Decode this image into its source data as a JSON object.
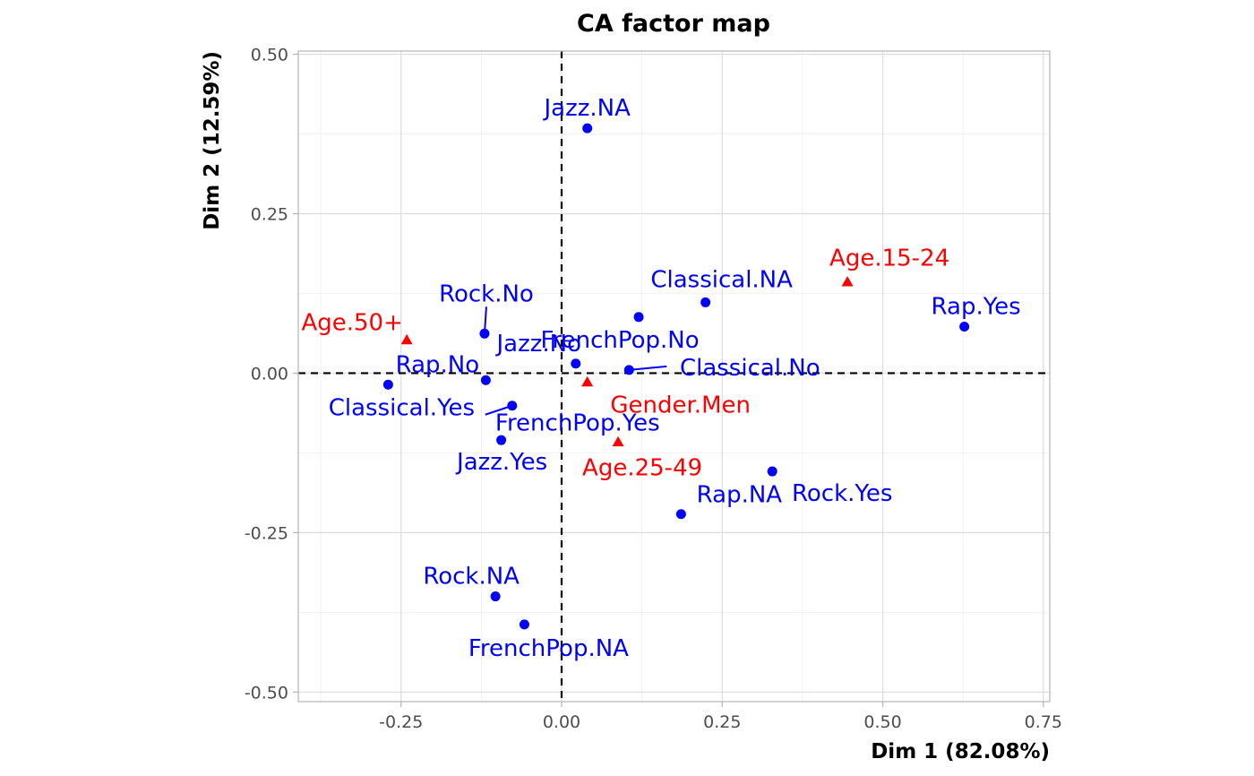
{
  "chart_data": {
    "type": "scatter",
    "title": "CA factor map",
    "xlabel": "Dim 1 (82.08%)",
    "ylabel": "Dim 2 (12.59%)",
    "xlim": [
      -0.41,
      0.76
    ],
    "ylim": [
      -0.515,
      0.505
    ],
    "x_ticks": [
      -0.25,
      0.0,
      0.25,
      0.5,
      0.75
    ],
    "x_tick_labels": [
      "-0.25",
      "0.00",
      "0.25",
      "0.50",
      "0.75"
    ],
    "y_ticks": [
      -0.5,
      -0.25,
      0.0,
      0.25,
      0.5
    ],
    "y_tick_labels": [
      "-0.50",
      "-0.25",
      "0.00",
      "0.25",
      "0.50"
    ],
    "grid": true,
    "reference_lines": {
      "x": 0,
      "y": 0,
      "style": "dashed"
    },
    "series": [
      {
        "marker": "circle",
        "color": "#0000ff",
        "points": [
          {
            "label": "Jazz.NA",
            "x": 0.04,
            "y": 0.384
          },
          {
            "label": "Classical.NA",
            "x": 0.224,
            "y": 0.111
          },
          {
            "label": "Rap.Yes",
            "x": 0.627,
            "y": 0.073
          },
          {
            "label": "Rock.No",
            "x": -0.12,
            "y": 0.062
          },
          {
            "label": "FrenchPop.No",
            "x": 0.12,
            "y": 0.088
          },
          {
            "label": "Jazz.No",
            "x": 0.022,
            "y": 0.015
          },
          {
            "label": "Classical.No",
            "x": 0.105,
            "y": 0.005
          },
          {
            "label": "Rap.No",
            "x": -0.118,
            "y": -0.011
          },
          {
            "label": "Classical.Yes",
            "x": -0.27,
            "y": -0.018
          },
          {
            "label": "FrenchPop.Yes",
            "x": -0.077,
            "y": -0.051
          },
          {
            "label": "Jazz.Yes",
            "x": -0.094,
            "y": -0.105
          },
          {
            "label": "Rock.Yes",
            "x": 0.328,
            "y": -0.154
          },
          {
            "label": "Rap.NA",
            "x": 0.186,
            "y": -0.221
          },
          {
            "label": "Rock.NA",
            "x": -0.103,
            "y": -0.35
          },
          {
            "label": "FrenchPop.NA",
            "x": -0.058,
            "y": -0.394
          }
        ]
      },
      {
        "marker": "triangle",
        "color": "#ff0000",
        "points": [
          {
            "label": "Age.15-24",
            "x": 0.445,
            "y": 0.143
          },
          {
            "label": "Age.50+",
            "x": -0.241,
            "y": 0.052
          },
          {
            "label": "Gender.Men",
            "x": 0.04,
            "y": -0.014
          },
          {
            "label": "Age.25-49",
            "x": 0.088,
            "y": -0.108
          }
        ]
      }
    ]
  }
}
